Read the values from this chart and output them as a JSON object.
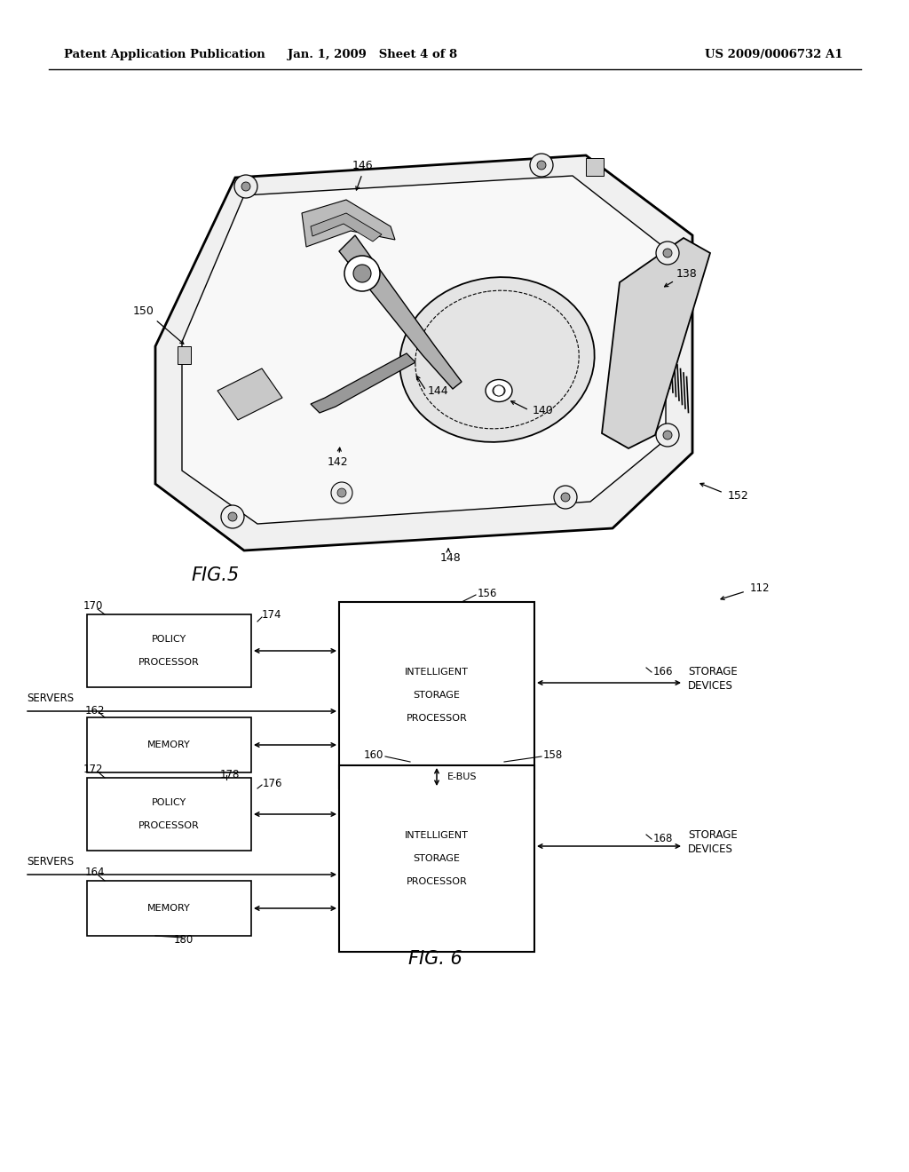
{
  "bg_color": "#ffffff",
  "page_width": 10.24,
  "page_height": 13.2,
  "header_left": "Patent Application Publication",
  "header_center": "Jan. 1, 2009   Sheet 4 of 8",
  "header_right": "US 2009/0006732 A1",
  "fig5_label": "FIG.5",
  "fig6_label": "FIG. 6",
  "fig5_ref_labels": [
    "146",
    "150",
    "138",
    "144",
    "140",
    "142",
    "152",
    "148"
  ],
  "fig6_ref_labels": [
    "170",
    "174",
    "156",
    "112",
    "162",
    "166",
    "172",
    "178",
    "176",
    "160",
    "158",
    "164",
    "168",
    "180"
  ],
  "ebus_label": "E-BUS",
  "servers_1": "SERVERS",
  "servers_2": "SERVERS",
  "storage_devices_1": "STORAGE\nDEVICES",
  "storage_devices_2": "STORAGE\nDEVICES"
}
